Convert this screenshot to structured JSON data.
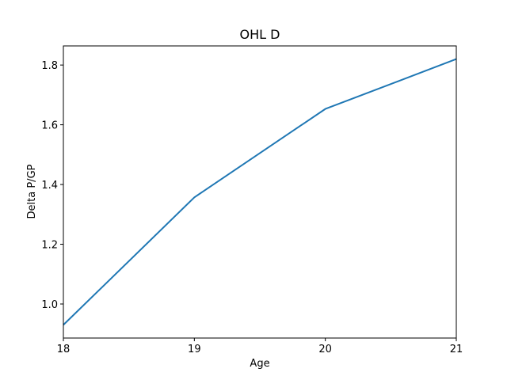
{
  "chart_data": {
    "type": "line",
    "title": "OHL D",
    "xlabel": "Age",
    "ylabel": "Delta P/GP",
    "x": [
      18,
      19,
      20,
      21
    ],
    "series": [
      {
        "values": [
          0.93,
          1.357,
          1.653,
          1.82
        ],
        "color": "#1f77b4"
      }
    ],
    "xlim": [
      18,
      21
    ],
    "ylim": [
      0.886,
      1.864
    ],
    "xticks": [
      18,
      19,
      20,
      21
    ],
    "xtick_labels": [
      "18",
      "19",
      "20",
      "21"
    ],
    "yticks": [
      1.0,
      1.2,
      1.4,
      1.6,
      1.8
    ],
    "ytick_labels": [
      "1.0",
      "1.2",
      "1.4",
      "1.6",
      "1.8"
    ],
    "grid": false,
    "legend": "none"
  }
}
